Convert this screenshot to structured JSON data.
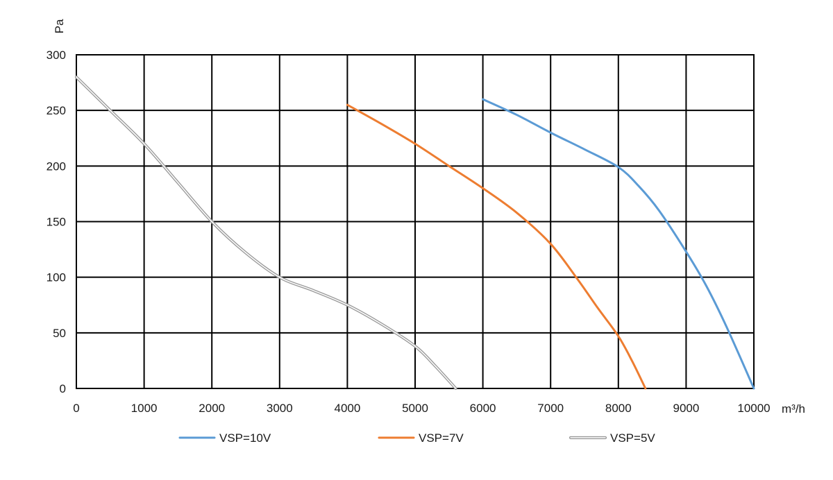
{
  "chart_data": {
    "type": "line",
    "title": "",
    "xlabel": "m³/h",
    "ylabel": "Pa",
    "xlim": [
      0,
      10000
    ],
    "ylim": [
      0,
      300
    ],
    "x_ticks": [
      0,
      1000,
      2000,
      3000,
      4000,
      5000,
      6000,
      7000,
      8000,
      9000,
      10000
    ],
    "y_ticks": [
      0,
      50,
      100,
      150,
      200,
      250,
      300
    ],
    "grid": true,
    "legend_position": "bottom",
    "series": [
      {
        "name": "VSP=10V",
        "color": "#5b9bd5",
        "style": "solid",
        "x": [
          6000,
          6500,
          7000,
          7500,
          8000,
          8300,
          8600,
          9000,
          9300,
          9600,
          10000
        ],
        "y": [
          260,
          246,
          230,
          215,
          199,
          182,
          160,
          123,
          92,
          55,
          0
        ]
      },
      {
        "name": "VSP=7V",
        "color": "#ed7d31",
        "style": "solid",
        "x": [
          4000,
          4500,
          5000,
          5500,
          6000,
          6500,
          7000,
          7400,
          7700,
          8000,
          8200,
          8400
        ],
        "y": [
          255,
          238,
          220,
          200,
          180,
          158,
          130,
          98,
          72,
          47,
          25,
          0
        ]
      },
      {
        "name": "VSP=5V",
        "color": "#9a9a9a",
        "style": "double",
        "x": [
          0,
          500,
          1000,
          1500,
          2000,
          2500,
          3000,
          3500,
          4000,
          4500,
          5000,
          5300,
          5600
        ],
        "y": [
          280,
          250,
          220,
          185,
          150,
          122,
          100,
          88,
          75,
          58,
          38,
          20,
          0
        ]
      }
    ]
  }
}
